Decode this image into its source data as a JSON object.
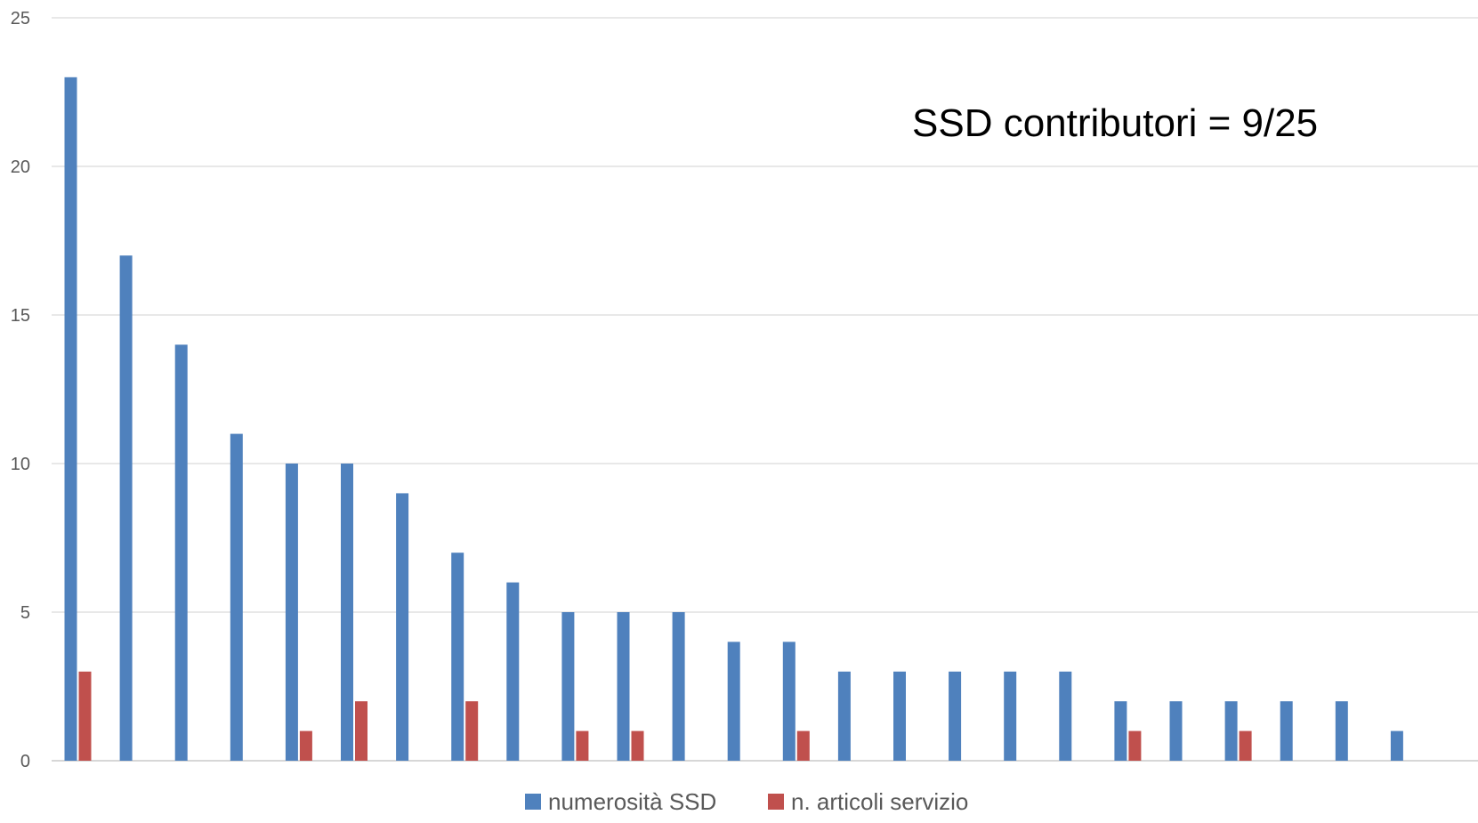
{
  "chart_data": {
    "type": "bar",
    "title": "",
    "xlabel": "",
    "ylabel": "",
    "ylim": [
      0,
      25
    ],
    "yticks": [
      "0",
      "5",
      "10",
      "15",
      "20",
      "25"
    ],
    "grid": true,
    "legend_position": "bottom",
    "annotation": "SSD contributori = 9/25",
    "series": [
      {
        "name": "numerosità SSD",
        "color": "#4f81bd",
        "values": [
          23,
          17,
          14,
          11,
          10,
          10,
          9,
          7,
          6,
          5,
          5,
          5,
          4,
          4,
          3,
          3,
          3,
          3,
          3,
          2,
          2,
          2,
          2,
          2,
          1
        ]
      },
      {
        "name": "n. articoli servizio",
        "color": "#c0504d",
        "values": [
          3,
          0,
          0,
          0,
          1,
          2,
          0,
          2,
          0,
          1,
          1,
          0,
          0,
          1,
          0,
          0,
          0,
          0,
          0,
          1,
          0,
          1,
          0,
          0,
          0
        ]
      }
    ]
  }
}
